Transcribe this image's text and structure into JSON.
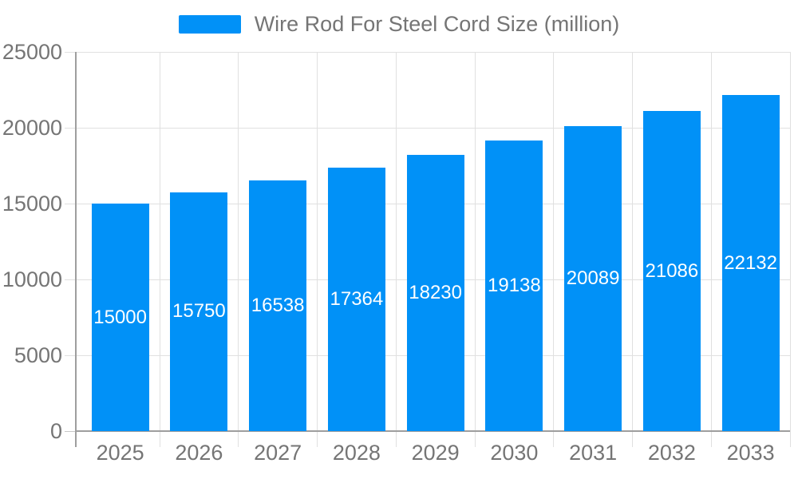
{
  "legend": {
    "label": "Wire Rod For Steel Cord Size (million)"
  },
  "colors": {
    "accent": "#0191F7",
    "axis_text": "#757575",
    "grid_line": "#e0e0e0",
    "tick": "#c7c7c7",
    "axis_line": "#9e9e9e",
    "value_label": "#ffffff",
    "background": "#ffffff"
  },
  "chart_data": {
    "type": "bar",
    "title": "Wire Rod For Steel Cord Size (million)",
    "series_name": "Wire Rod For Steel Cord Size (million)",
    "categories": [
      "2025",
      "2026",
      "2027",
      "2028",
      "2029",
      "2030",
      "2031",
      "2032",
      "2033"
    ],
    "values": [
      15000,
      15750,
      16538,
      17364,
      18230,
      19138,
      20089,
      21086,
      22132
    ],
    "xlabel": "",
    "ylabel": "",
    "ylim": [
      0,
      25000
    ],
    "yticks": [
      0,
      5000,
      10000,
      15000,
      20000,
      25000
    ],
    "grid": true,
    "legend_position": "top-center",
    "value_labels": "inside-middle"
  }
}
